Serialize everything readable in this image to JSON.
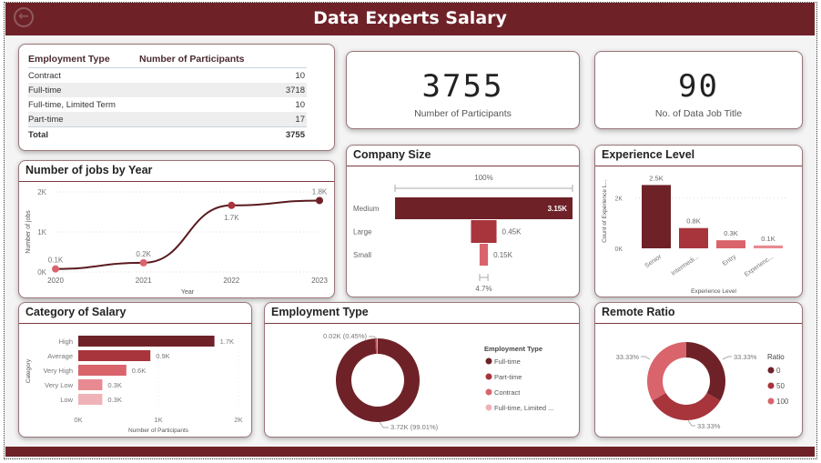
{
  "header": {
    "title": "Data Experts Salary",
    "back_icon": "back-arrow-icon"
  },
  "colors": {
    "dark": "#6e2228",
    "mid": "#a8343c",
    "light": "#d9646c",
    "lighter": "#e88a91",
    "lightest": "#efb3b7"
  },
  "employment_table": {
    "columns": [
      "Employment Type",
      "Number of Participants"
    ],
    "rows": [
      {
        "type": "Contract",
        "count": "10"
      },
      {
        "type": "Full-time",
        "count": "3718"
      },
      {
        "type": "Full-time, Limited Term",
        "count": "10"
      },
      {
        "type": "Part-time",
        "count": "17"
      }
    ],
    "total_label": "Total",
    "total_value": "3755"
  },
  "kpis": [
    {
      "value": "3755",
      "label": "Number of Participants"
    },
    {
      "value": "90",
      "label": "No. of Data Job Title"
    }
  ],
  "chart_data": [
    {
      "id": "jobs_by_year",
      "type": "line",
      "title": "Number of jobs by Year",
      "xlabel": "Year",
      "ylabel": "Number of jobs",
      "x": [
        "2020",
        "2021",
        "2022",
        "2023"
      ],
      "values": [
        76,
        230,
        1664,
        1785
      ],
      "data_labels": [
        "0.1K",
        "0.2K",
        "1.7K",
        "1.8K"
      ],
      "yticks": [
        "0K",
        "1K",
        "2K"
      ],
      "ylim": [
        0,
        2000
      ],
      "grid": true
    },
    {
      "id": "company_size",
      "type": "bar",
      "subtype": "funnel",
      "title": "Company Size",
      "categories": [
        "Medium",
        "Large",
        "Small"
      ],
      "values": [
        3153,
        454,
        148
      ],
      "data_labels": [
        "3.15K",
        "0.45K",
        "0.15K"
      ],
      "top_label": "100%",
      "bottom_label": "4.7%"
    },
    {
      "id": "experience_level",
      "type": "bar",
      "title": "Experience Level",
      "xlabel": "Experience Level",
      "ylabel": "Count of Experience L...",
      "categories": [
        "Senior",
        "Intermedi...",
        "Entry",
        "Experienc..."
      ],
      "values": [
        2516,
        805,
        320,
        114
      ],
      "data_labels": [
        "2.5K",
        "0.8K",
        "0.3K",
        "0.1K"
      ],
      "yticks": [
        "0K",
        "2K"
      ],
      "ylim": [
        0,
        3000
      ],
      "grid": true
    },
    {
      "id": "category_of_salary",
      "type": "bar",
      "orientation": "horizontal",
      "title": "Category of Salary",
      "xlabel": "Number of Participants",
      "ylabel": "Category",
      "categories": [
        "High",
        "Average",
        "Very High",
        "Very Low",
        "Low"
      ],
      "values": [
        1700,
        900,
        600,
        300,
        300
      ],
      "data_labels": [
        "1.7K",
        "0.9K",
        "0.6K",
        "0.3K",
        "0.3K"
      ],
      "xticks": [
        "0K",
        "1K",
        "2K"
      ],
      "xlim": [
        0,
        2000
      ]
    },
    {
      "id": "employment_type_donut",
      "type": "pie",
      "subtype": "donut",
      "title": "Employment Type",
      "legend_title": "Employment Type",
      "categories": [
        "Full-time",
        "Part-time",
        "Contract",
        "Full-time, Limited ..."
      ],
      "values": [
        3718,
        17,
        10,
        10
      ],
      "data_labels": [
        "3.72K (99.01%)",
        "0.02K (0.45%)"
      ],
      "legend": "right"
    },
    {
      "id": "remote_ratio",
      "type": "pie",
      "subtype": "donut",
      "title": "Remote Ratio",
      "legend_title": "Ratio",
      "categories": [
        "0",
        "50",
        "100"
      ],
      "values": [
        33.33,
        33.33,
        33.33
      ],
      "data_labels": [
        "33.33%",
        "33.33%",
        "33.33%"
      ],
      "legend": "right"
    }
  ]
}
